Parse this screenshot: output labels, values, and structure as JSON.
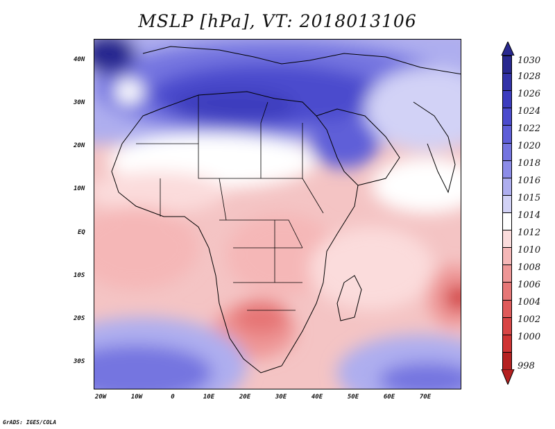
{
  "title": "MSLP [hPa], VT: 2018013106",
  "footer": "GrADS: IGES/COLA",
  "y_axis": [
    "40N",
    "30N",
    "20N",
    "10N",
    "EQ",
    "10S",
    "20S",
    "30S"
  ],
  "x_axis": [
    "20W",
    "10W",
    "0",
    "10E",
    "20E",
    "30E",
    "40E",
    "50E",
    "60E",
    "70E"
  ],
  "colorbar": {
    "levels": [
      "1030",
      "1028",
      "1026",
      "1024",
      "1022",
      "1020",
      "1018",
      "1016",
      "1015",
      "1014",
      "1012",
      "1010",
      "1008",
      "1006",
      "1004",
      "1002",
      "1000",
      "998"
    ],
    "colors": [
      "#28288f",
      "#3232a8",
      "#3c3cbe",
      "#4b4bcd",
      "#5e5ed8",
      "#7474e0",
      "#8c8ce8",
      "#aeaeef",
      "#d2d2f6",
      "#ffffff",
      "#fbdcdc",
      "#f5b7b7",
      "#ee9696",
      "#e67676",
      "#df5a5a",
      "#d84545",
      "#cf3333",
      "#b52020"
    ]
  },
  "map": {
    "variable": "MSLP",
    "units": "hPa",
    "valid_time": "2018013106",
    "region": "Africa"
  }
}
